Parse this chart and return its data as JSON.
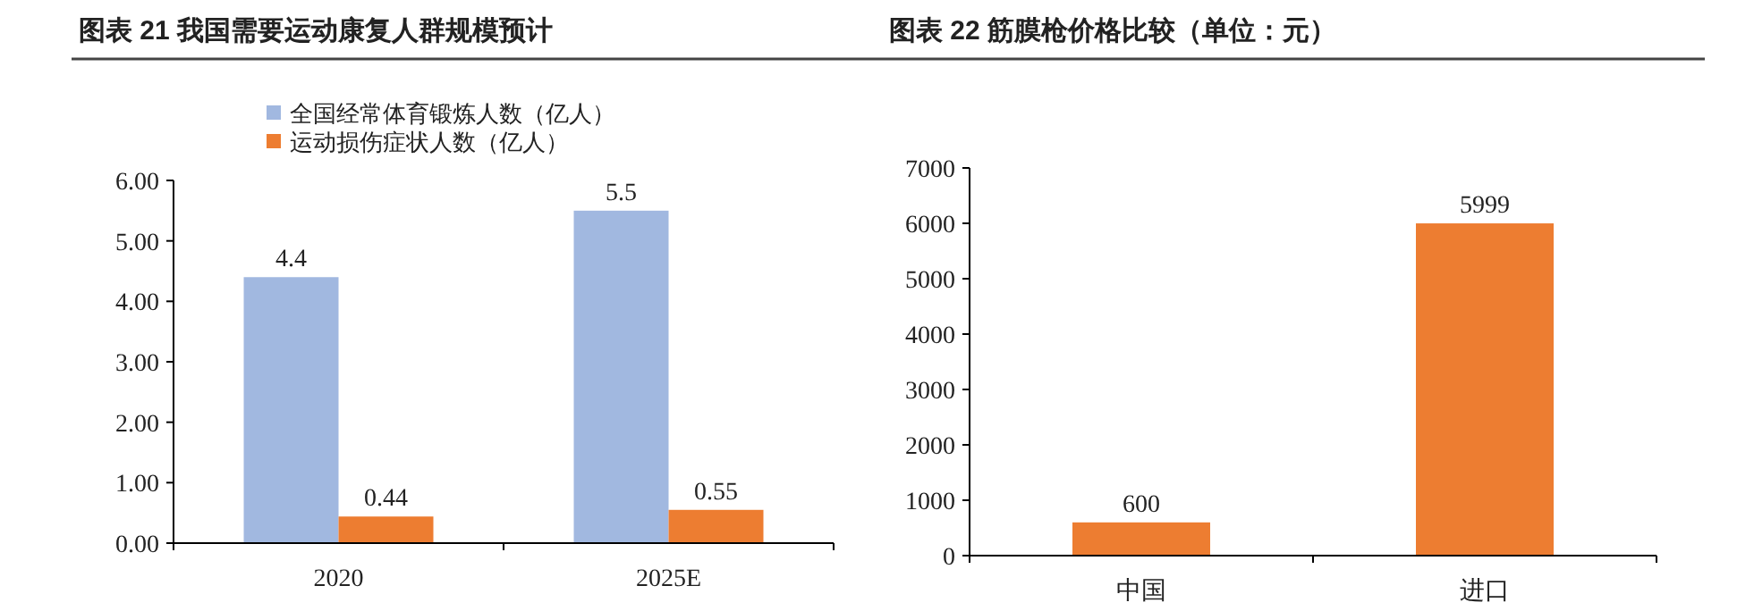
{
  "chart_data": [
    {
      "type": "bar",
      "title": "图表 21 我国需要运动康复人群规模预计",
      "categories": [
        "2020",
        "2025E"
      ],
      "series": [
        {
          "name": "全国经常体育锻炼人数（亿人）",
          "color": "#a1b8e0",
          "values": [
            4.4,
            5.5
          ]
        },
        {
          "name": "运动损伤症状人数（亿人）",
          "color": "#ed7d31",
          "values": [
            0.44,
            0.55
          ]
        }
      ],
      "ylim": [
        0,
        6
      ],
      "yticks": [
        {
          "value": 0,
          "label": "0.00"
        },
        {
          "value": 1,
          "label": "1.00"
        },
        {
          "value": 2,
          "label": "2.00"
        },
        {
          "value": 3,
          "label": "3.00"
        },
        {
          "value": 4,
          "label": "4.00"
        },
        {
          "value": 5,
          "label": "5.00"
        },
        {
          "value": 6,
          "label": "6.00"
        }
      ],
      "data_labels": true,
      "legend": "top"
    },
    {
      "type": "bar",
      "title": "图表 22 筋膜枪价格比较（单位：元）",
      "categories": [
        "中国",
        "进口"
      ],
      "series": [
        {
          "color": "#ed7d31",
          "values": [
            600,
            5999
          ]
        }
      ],
      "ylim": [
        0,
        7000
      ],
      "yticks": [
        0,
        1000,
        2000,
        3000,
        4000,
        5000,
        6000,
        7000
      ],
      "data_labels": true
    }
  ]
}
